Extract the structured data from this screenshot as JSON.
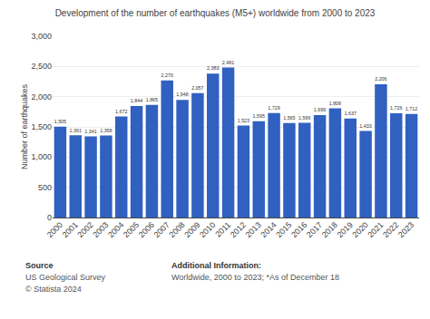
{
  "chart_data": {
    "type": "bar",
    "title": "Development of the number of earthquakes (M5+) worldwide from 2000 to 2023",
    "ylabel": "Number of earthquakes",
    "categories": [
      "2000",
      "2001",
      "2002",
      "2003",
      "2004",
      "2005",
      "2006",
      "2007",
      "2008",
      "2009",
      "2010",
      "2011",
      "2012",
      "2013",
      "2014",
      "2015",
      "2016",
      "2017",
      "2018",
      "2019",
      "2020",
      "2021",
      "2022",
      "2023"
    ],
    "values": [
      1505,
      1361,
      1341,
      1358,
      1672,
      1844,
      1865,
      2270,
      1948,
      2057,
      2383,
      2481,
      1523,
      1595,
      1729,
      1565,
      1566,
      1696,
      1808,
      1637,
      1433,
      2206,
      1726,
      1712
    ],
    "value_labels": [
      "1,505",
      "1,361",
      "1,341",
      "1,358",
      "1,672",
      "1,844",
      "1,865",
      "2,270",
      "1,948",
      "2,057",
      "2,383",
      "2,481",
      "1,523",
      "1,595",
      "1,729",
      "1,565",
      "1,566",
      "1,696",
      "1,808",
      "1,637",
      "1,433",
      "2,206",
      "1,726",
      "1,712"
    ],
    "data_labels": true,
    "color": "#3060C0",
    "ylim": [
      0,
      3000
    ],
    "yticks": [
      0,
      500,
      {
        "value": 1000,
        "label": "1,000"
      },
      {
        "value": 1500,
        "label": "1,500"
      },
      {
        "value": 2000,
        "label": "2,000"
      },
      {
        "value": 2500,
        "label": "2,500"
      },
      {
        "value": 3000,
        "label": "3,000"
      }
    ],
    "grid": true,
    "annotations": [
      "Source",
      "US Geological Survey",
      "© Statista 2024",
      "Additional Information:",
      "Worldwide, 2000 to 2023; *As of December 18"
    ]
  }
}
